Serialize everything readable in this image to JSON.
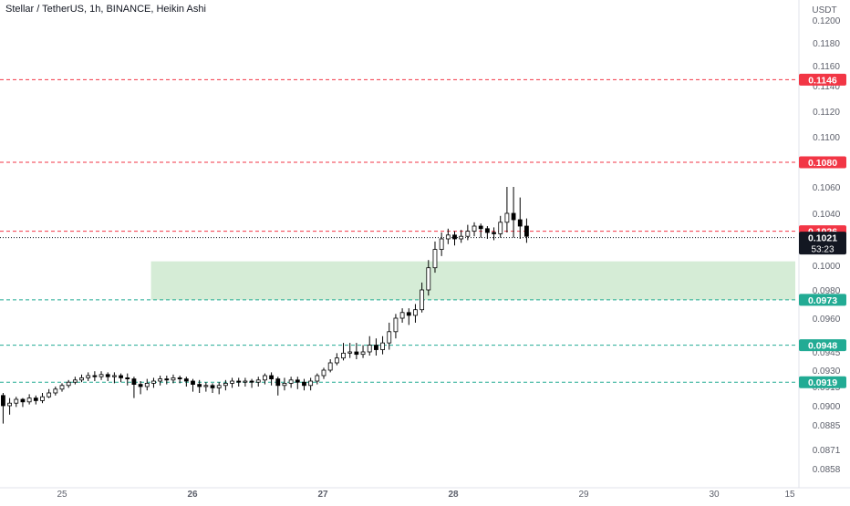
{
  "header": {
    "title": "Stellar / TetherUS, 1h, BINANCE, Heikin Ashi"
  },
  "price_axis": {
    "currency": "USDT",
    "ticks": [
      "0.1200",
      "0.1180",
      "0.1160",
      "0.1140",
      "0.1120",
      "0.1100",
      "0.1080",
      "0.1060",
      "0.1040",
      "0.1020",
      "0.1000",
      "0.0980",
      "0.0960",
      "0.0945",
      "0.0930",
      "0.0915",
      "0.0900",
      "0.0885",
      "0.0871",
      "0.0858"
    ]
  },
  "time_axis": {
    "ticks": [
      "25",
      "26",
      "27",
      "28",
      "29",
      "30",
      "15"
    ]
  },
  "colors": {
    "resistance": "#f23645",
    "support": "#22ab94",
    "zone": "#d5ecd6",
    "candle_up": "#ffffff",
    "candle_down": "#000000",
    "text": "#131722",
    "axis_text": "#5d606b"
  },
  "chart_data": {
    "type": "candlestick",
    "title": "Stellar / TetherUS, 1h, BINANCE, Heikin Ashi",
    "ylabel": "USDT",
    "yticks": [
      "0.1200",
      "0.1180",
      "0.1160",
      "0.1140",
      "0.1120",
      "0.1100",
      "0.1080",
      "0.1060",
      "0.1040",
      "0.1020",
      "0.1000",
      "0.0980",
      "0.0960",
      "0.0945",
      "0.0930",
      "0.0915",
      "0.0900",
      "0.0885",
      "0.0871",
      "0.0858"
    ],
    "xticks": [
      "25",
      "26",
      "27",
      "28",
      "29",
      "30",
      "15"
    ],
    "horizontal_lines": [
      {
        "value": 0.1146,
        "label": "0.1146",
        "kind": "resistance"
      },
      {
        "value": 0.108,
        "label": "0.1080",
        "kind": "resistance"
      },
      {
        "value": 0.1026,
        "label": "0.1026",
        "kind": "resistance"
      },
      {
        "value": 0.0973,
        "label": "0.0973",
        "kind": "support"
      },
      {
        "value": 0.0948,
        "label": "0.0948",
        "kind": "support"
      },
      {
        "value": 0.0919,
        "label": "0.0919",
        "kind": "support"
      }
    ],
    "zone": {
      "from": 0.0973,
      "to": 0.1003,
      "start_day": 25.68
    },
    "current_price": {
      "value": 0.1021,
      "label": "0.1021",
      "countdown": "53:23"
    },
    "candles": [
      [
        24.45,
        0.0909,
        0.0911,
        0.0914,
        0.0905
      ],
      [
        24.5,
        0.0911,
        0.0908,
        0.0913,
        0.0897
      ],
      [
        24.55,
        0.0908,
        0.09,
        0.091,
        0.0886
      ],
      [
        24.6,
        0.09,
        0.0902,
        0.0906,
        0.0893
      ],
      [
        24.65,
        0.0902,
        0.0905,
        0.0907,
        0.0899
      ],
      [
        24.7,
        0.0905,
        0.0903,
        0.0906,
        0.0899
      ],
      [
        24.75,
        0.0903,
        0.0906,
        0.0909,
        0.0901
      ],
      [
        24.8,
        0.0906,
        0.0904,
        0.0908,
        0.0901
      ],
      [
        24.85,
        0.0904,
        0.0907,
        0.091,
        0.0902
      ],
      [
        24.9,
        0.0907,
        0.091,
        0.0913,
        0.0906
      ],
      [
        24.95,
        0.091,
        0.0913,
        0.0915,
        0.0908
      ],
      [
        25.0,
        0.0913,
        0.0916,
        0.0918,
        0.0911
      ],
      [
        25.05,
        0.0916,
        0.0919,
        0.0921,
        0.0914
      ],
      [
        25.1,
        0.0919,
        0.0921,
        0.0924,
        0.0917
      ],
      [
        25.15,
        0.0921,
        0.0923,
        0.0926,
        0.0919
      ],
      [
        25.2,
        0.0923,
        0.0925,
        0.0928,
        0.092
      ],
      [
        25.25,
        0.0925,
        0.0924,
        0.0929,
        0.092
      ],
      [
        25.3,
        0.0924,
        0.0926,
        0.0929,
        0.0921
      ],
      [
        25.35,
        0.0926,
        0.0924,
        0.0928,
        0.092
      ],
      [
        25.4,
        0.0924,
        0.0925,
        0.0928,
        0.0918
      ],
      [
        25.45,
        0.0925,
        0.0923,
        0.0927,
        0.0919
      ],
      [
        25.5,
        0.0923,
        0.0922,
        0.0927,
        0.0916
      ],
      [
        25.55,
        0.0922,
        0.0917,
        0.0924,
        0.0906
      ],
      [
        25.6,
        0.0917,
        0.0915,
        0.092,
        0.0909
      ],
      [
        25.65,
        0.0915,
        0.0918,
        0.0922,
        0.0912
      ],
      [
        25.7,
        0.0918,
        0.092,
        0.0923,
        0.0914
      ],
      [
        25.75,
        0.092,
        0.0922,
        0.0925,
        0.0916
      ],
      [
        25.8,
        0.0922,
        0.0921,
        0.0925,
        0.0917
      ],
      [
        25.85,
        0.0921,
        0.0923,
        0.0926,
        0.0918
      ],
      [
        25.9,
        0.0923,
        0.0922,
        0.0925,
        0.0918
      ],
      [
        25.95,
        0.0922,
        0.092,
        0.0924,
        0.0915
      ],
      [
        26.0,
        0.092,
        0.0917,
        0.0922,
        0.0911
      ],
      [
        26.05,
        0.0917,
        0.0915,
        0.0921,
        0.091
      ],
      [
        26.1,
        0.0915,
        0.0916,
        0.0919,
        0.0911
      ],
      [
        26.15,
        0.0916,
        0.0914,
        0.0918,
        0.091
      ],
      [
        26.2,
        0.0914,
        0.0916,
        0.0919,
        0.0909
      ],
      [
        26.25,
        0.0916,
        0.0918,
        0.0921,
        0.0912
      ],
      [
        26.3,
        0.0918,
        0.092,
        0.0923,
        0.0914
      ],
      [
        26.35,
        0.092,
        0.0919,
        0.0923,
        0.0915
      ],
      [
        26.4,
        0.0919,
        0.092,
        0.0923,
        0.0915
      ],
      [
        26.45,
        0.092,
        0.0919,
        0.0922,
        0.0914
      ],
      [
        26.5,
        0.0919,
        0.0921,
        0.0924,
        0.0915
      ],
      [
        26.55,
        0.0921,
        0.0925,
        0.0927,
        0.0917
      ],
      [
        26.6,
        0.0925,
        0.0922,
        0.0928,
        0.0916
      ],
      [
        26.65,
        0.0922,
        0.0916,
        0.0924,
        0.0908
      ],
      [
        26.7,
        0.0916,
        0.0918,
        0.0923,
        0.0912
      ],
      [
        26.75,
        0.0918,
        0.0921,
        0.0924,
        0.0914
      ],
      [
        26.8,
        0.0921,
        0.0919,
        0.0924,
        0.0913
      ],
      [
        26.85,
        0.0919,
        0.0916,
        0.0922,
        0.0912
      ],
      [
        26.9,
        0.0916,
        0.092,
        0.0923,
        0.0912
      ],
      [
        26.95,
        0.092,
        0.0925,
        0.0927,
        0.0917
      ],
      [
        27.0,
        0.0925,
        0.093,
        0.0932,
        0.0922
      ],
      [
        27.05,
        0.093,
        0.0936,
        0.0939,
        0.0928
      ],
      [
        27.1,
        0.0936,
        0.094,
        0.0944,
        0.0934
      ],
      [
        27.15,
        0.094,
        0.0944,
        0.0949,
        0.0938
      ],
      [
        27.2,
        0.0944,
        0.0945,
        0.0949,
        0.094
      ],
      [
        27.25,
        0.0945,
        0.0943,
        0.0949,
        0.0939
      ],
      [
        27.3,
        0.0943,
        0.0945,
        0.0948,
        0.094
      ],
      [
        27.35,
        0.0945,
        0.0948,
        0.0952,
        0.0942
      ],
      [
        27.4,
        0.0948,
        0.0946,
        0.0951,
        0.0942
      ],
      [
        27.45,
        0.0946,
        0.0949,
        0.0952,
        0.0943
      ],
      [
        27.5,
        0.0949,
        0.0954,
        0.0958,
        0.0946
      ],
      [
        27.55,
        0.0954,
        0.096,
        0.0963,
        0.0951
      ],
      [
        27.6,
        0.096,
        0.0964,
        0.0967,
        0.0958
      ],
      [
        27.65,
        0.0964,
        0.0962,
        0.0967,
        0.0957
      ],
      [
        27.7,
        0.0962,
        0.0966,
        0.097,
        0.0958
      ],
      [
        27.75,
        0.0966,
        0.098,
        0.0986,
        0.0964
      ],
      [
        27.8,
        0.098,
        0.0998,
        0.1004,
        0.0976
      ],
      [
        27.85,
        0.0998,
        0.1012,
        0.1018,
        0.0994
      ],
      [
        27.9,
        0.1012,
        0.102,
        0.1025,
        0.1007
      ],
      [
        27.95,
        0.102,
        0.1023,
        0.1028,
        0.1016
      ],
      [
        28.0,
        0.1023,
        0.102,
        0.1026,
        0.1015
      ],
      [
        28.05,
        0.102,
        0.1022,
        0.1027,
        0.1017
      ],
      [
        28.1,
        0.1022,
        0.1026,
        0.1031,
        0.1019
      ],
      [
        28.15,
        0.1026,
        0.103,
        0.1033,
        0.1022
      ],
      [
        28.2,
        0.103,
        0.1028,
        0.1032,
        0.1021
      ],
      [
        28.25,
        0.1028,
        0.1025,
        0.103,
        0.102
      ],
      [
        28.3,
        0.1025,
        0.1024,
        0.1029,
        0.1019
      ],
      [
        28.35,
        0.1024,
        0.1033,
        0.1038,
        0.1021
      ],
      [
        28.4,
        0.1033,
        0.104,
        0.106,
        0.1025
      ],
      [
        28.45,
        0.104,
        0.1035,
        0.106,
        0.1021
      ],
      [
        28.5,
        0.1035,
        0.103,
        0.1052,
        0.102
      ],
      [
        28.55,
        0.103,
        0.1022,
        0.1036,
        0.1017
      ]
    ]
  }
}
